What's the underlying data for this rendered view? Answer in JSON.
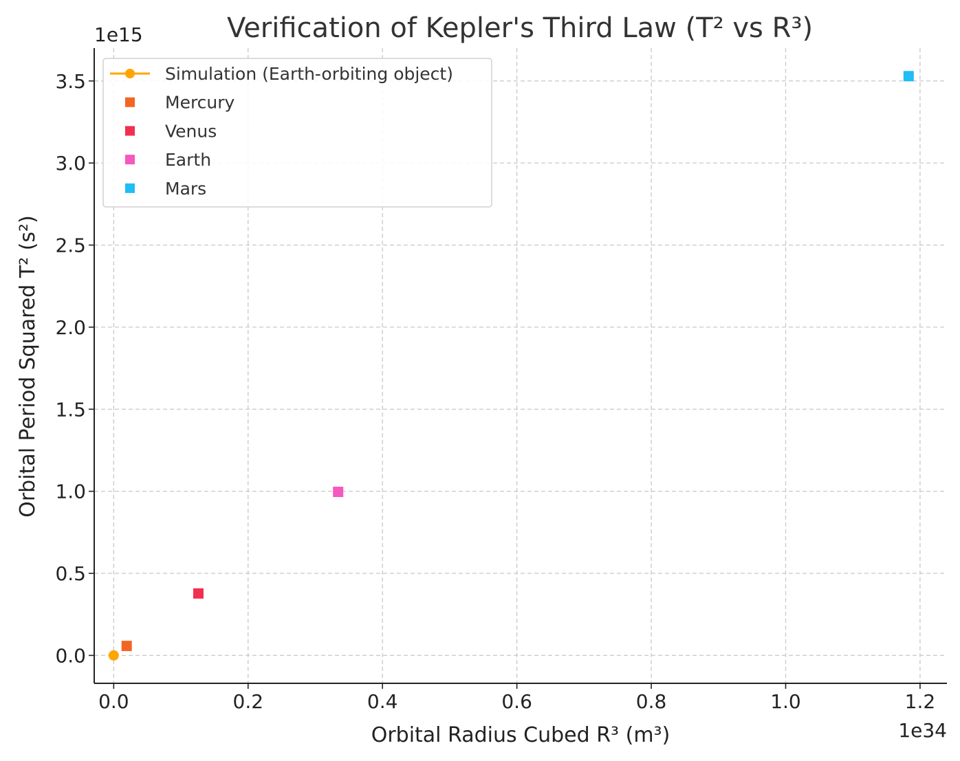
{
  "chart_data": {
    "type": "scatter",
    "title": "Verification of Kepler's Third Law (T² vs R³)",
    "xlabel": "Orbital Radius Cubed R³ (m³)",
    "ylabel": "Orbital Period Squared T² (s²)",
    "x_offset_label": "1e34",
    "y_offset_label": "1e15",
    "xlim": [
      -0.029,
      1.24
    ],
    "ylim": [
      -0.17,
      3.7
    ],
    "x_ticks": [
      0.0,
      0.2,
      0.4,
      0.6,
      0.8,
      1.0,
      1.2
    ],
    "y_ticks": [
      0.0,
      0.5,
      1.0,
      1.5,
      2.0,
      2.5,
      3.0,
      3.5
    ],
    "x_tick_labels": [
      "0.0",
      "0.2",
      "0.4",
      "0.6",
      "0.8",
      "1.0",
      "1.2"
    ],
    "y_tick_labels": [
      "0.0",
      "0.5",
      "1.0",
      "1.5",
      "2.0",
      "2.5",
      "3.0",
      "3.5"
    ],
    "grid": true,
    "legend_position": "top-left",
    "series": [
      {
        "name": "Simulation (Earth-orbiting object)",
        "marker": "circle-line",
        "color": "#FFA500",
        "x": [
          0.0
        ],
        "y": [
          0.0
        ]
      },
      {
        "name": "Mercury",
        "marker": "square",
        "color": "#F26522",
        "x": [
          0.0193
        ],
        "y": [
          0.0578
        ]
      },
      {
        "name": "Venus",
        "marker": "square",
        "color": "#F0304E",
        "x": [
          0.126
        ],
        "y": [
          0.3775
        ]
      },
      {
        "name": "Earth",
        "marker": "square",
        "color": "#F558BE",
        "x": [
          0.334
        ],
        "y": [
          0.9963
        ]
      },
      {
        "name": "Mars",
        "marker": "square",
        "color": "#21BDF5",
        "x": [
          1.183
        ],
        "y": [
          3.5293
        ]
      }
    ]
  }
}
